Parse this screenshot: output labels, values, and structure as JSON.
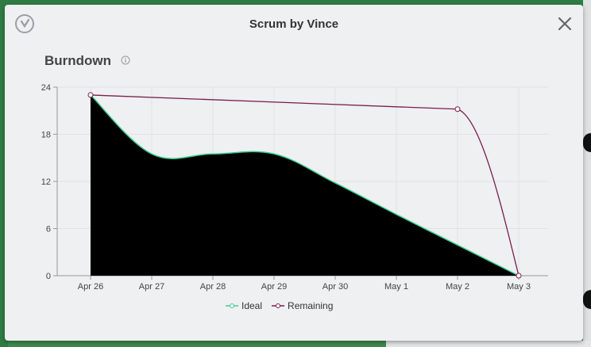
{
  "modal": {
    "title": "Scrum by Vince",
    "section_title": "Burndown",
    "close_label": "×"
  },
  "colors": {
    "ideal": "#3ecb8f",
    "remaining": "#7a1f45",
    "fill": "#000000",
    "grid": "#e0e3e4",
    "axis": "#999999"
  },
  "legend": [
    {
      "label": "Ideal",
      "color": "#3ecb8f"
    },
    {
      "label": "Remaining",
      "color": "#7a1f45"
    }
  ],
  "chart_data": {
    "type": "line",
    "title": "",
    "xlabel": "",
    "ylabel": "",
    "categories": [
      "Apr 26",
      "Apr 27",
      "Apr 28",
      "Apr 29",
      "Apr 30",
      "May 1",
      "May 2",
      "May 3"
    ],
    "yticks": [
      0,
      6,
      12,
      18,
      24
    ],
    "ylim": [
      0,
      24
    ],
    "grid": true,
    "legend_position": "bottom",
    "series": [
      {
        "name": "Ideal",
        "values": [
          23,
          15.5,
          15.5,
          15.5,
          11.8,
          7.8,
          3.9,
          0
        ]
      },
      {
        "name": "Remaining",
        "values": [
          23,
          null,
          null,
          null,
          null,
          null,
          21.2,
          0
        ]
      }
    ]
  }
}
